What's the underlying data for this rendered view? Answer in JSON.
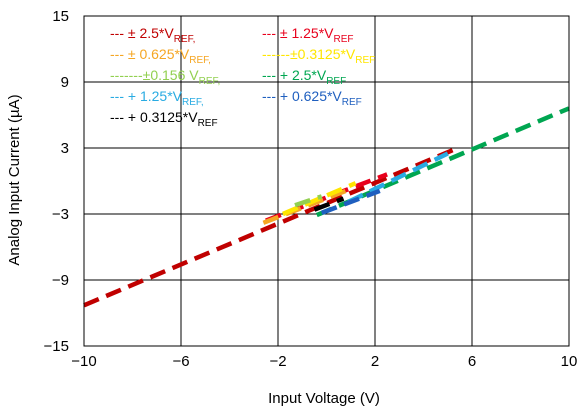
{
  "chart_data": {
    "type": "line",
    "xlabel": "Input Voltage (V)",
    "ylabel": "Analog Input Current (µA)",
    "xlim": [
      -10,
      10
    ],
    "ylim": [
      -15,
      15
    ],
    "x_ticks": [
      -10,
      -6,
      -2,
      2,
      6,
      10
    ],
    "y_ticks": [
      -15,
      -9,
      -3,
      3,
      9,
      15
    ],
    "x_tick_labels": [
      "−10",
      "−6",
      "−2",
      "2",
      "6",
      "10"
    ],
    "y_tick_labels": [
      "−15",
      "−9",
      "−3",
      "3",
      "9",
      "15"
    ],
    "grid": true,
    "legend_position": "top-left",
    "line_style": "dashed",
    "series": [
      {
        "name": "± 2.5*VREF",
        "label_prefix": "--- ± 2.5*V",
        "label_sub": "REF,",
        "color": "#c00000",
        "x": [
          -10,
          5.2
        ],
        "y": [
          -11.3,
          2.8
        ]
      },
      {
        "name": "± 1.25*VREF",
        "label_prefix": "--- ± 1.25*V",
        "label_sub": "REF",
        "color": "#e8001c",
        "x": [
          -2.5,
          2.5
        ],
        "y": [
          -3.6,
          0.6
        ]
      },
      {
        "name": "± 0.625*VREF",
        "label_prefix": "--- ± 0.625*V",
        "label_sub": "REF,",
        "color": "#f5a623",
        "x": [
          -2.6,
          0.8
        ],
        "y": [
          -3.8,
          -0.9
        ]
      },
      {
        "name": "±0.3125*VREF",
        "label_prefix": "------±0.3125*V",
        "label_sub": "REF",
        "color": "#ffe600",
        "x": [
          -1.8,
          1.2
        ],
        "y": [
          -3.0,
          -0.2
        ]
      },
      {
        "name": "±0.156 VREF",
        "label_prefix": "-------±0.156 V",
        "label_sub": "REF,",
        "color": "#92d050",
        "x": [
          -1.3,
          -0.2
        ],
        "y": [
          -2.2,
          -1.4
        ]
      },
      {
        "name": "+ 2.5*VREF",
        "label_prefix": "--- + 2.5*V",
        "label_sub": "REF",
        "color": "#00a651",
        "x": [
          -0.4,
          10
        ],
        "y": [
          -3.1,
          6.6
        ]
      },
      {
        "name": "+ 1.25*VREF",
        "label_prefix": "--- + 1.25*V",
        "label_sub": "REF,",
        "color": "#29abe2",
        "x": [
          0.9,
          5.0
        ],
        "y": [
          -1.9,
          2.5
        ]
      },
      {
        "name": "+ 0.625*VREF",
        "label_prefix": "--- + 0.625*V",
        "label_sub": "REF",
        "color": "#1f5fbf",
        "x": [
          -0.2,
          2.2
        ],
        "y": [
          -2.9,
          -0.9
        ]
      },
      {
        "name": "+ 0.3125*VREF",
        "label_prefix": "--- + 0.3125*V",
        "label_sub": "REF",
        "color": "#000000",
        "x": [
          -0.5,
          0.7
        ],
        "y": [
          -2.6,
          -1.6
        ]
      }
    ]
  }
}
